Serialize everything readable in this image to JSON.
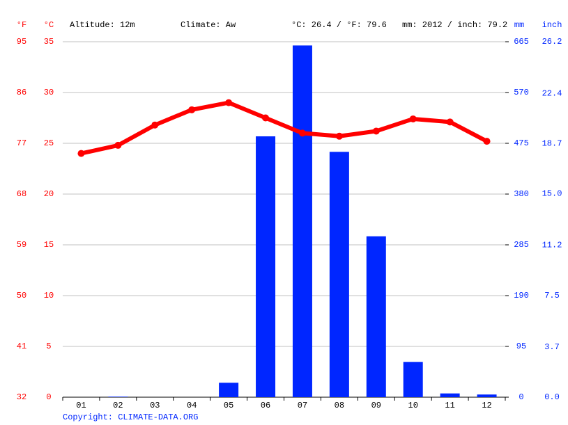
{
  "chart_data": {
    "type": "combo",
    "annotations": [
      "Altitude: 12m",
      "Climate: Aw",
      "°C: 26.4 / °F: 79.6",
      "mm: 2012 / inch: 79.2"
    ],
    "source": "Copyright: CLIMATE-DATA.ORG",
    "y_label": "°C",
    "y3_label": "°F",
    "y2_label": "mm",
    "y4_label": "inch",
    "categories": [
      "01",
      "02",
      "03",
      "04",
      "05",
      "06",
      "07",
      "08",
      "09",
      "10",
      "11",
      "12"
    ],
    "series": [
      {
        "color": "#0026ff",
        "axis": "y2",
        "values": [
          0,
          1,
          0,
          0,
          27,
          488,
          658,
          459,
          301,
          66,
          7,
          5
        ]
      },
      {
        "color": "#ff0000",
        "axis": "y",
        "values": [
          24.0,
          24.8,
          26.8,
          28.3,
          29.0,
          27.5,
          26.0,
          25.7,
          26.2,
          27.4,
          27.1,
          25.2
        ]
      }
    ],
    "ylim": [
      0,
      35
    ],
    "yticks": [
      0,
      5,
      10,
      15,
      20,
      25,
      30,
      35
    ],
    "y3lim": [
      32,
      95
    ],
    "y3ticks": [
      32,
      41,
      50,
      59,
      68,
      77,
      86,
      95
    ],
    "y2lim": [
      0,
      665
    ],
    "y2ticks": [
      0,
      95,
      190,
      285,
      380,
      475,
      570,
      665
    ],
    "y4lim": [
      0,
      26.2
    ],
    "y4ticks": [
      {
        "value": 0,
        "label": "0.0"
      },
      3.7,
      7.5,
      11.2,
      {
        "value": 15,
        "label": "15.0"
      },
      18.7,
      22.4,
      26.2
    ],
    "grid": true
  }
}
